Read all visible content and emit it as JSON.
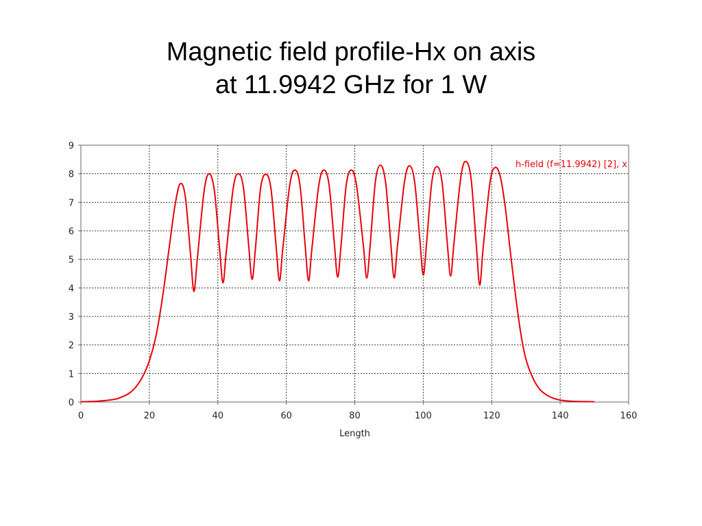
{
  "slide": {
    "title_line1": "Magnetic field profile-Hx on axis",
    "title_line2": "at 11.9942 GHz for 1 W"
  },
  "chart_data": {
    "type": "line",
    "title": "",
    "xlabel": "Length",
    "ylabel": "",
    "xlim": [
      0,
      160
    ],
    "ylim": [
      0,
      9
    ],
    "xticks": [
      0,
      20,
      40,
      60,
      80,
      100,
      120,
      140,
      160
    ],
    "yticks": [
      0,
      1,
      2,
      3,
      4,
      5,
      6,
      7,
      8,
      9
    ],
    "grid": true,
    "grid_style": "dotted",
    "legend_position": "top-right",
    "series": [
      {
        "name": "h-field (f=11.9942) [2], x",
        "color": "#e8000b",
        "peaks": [
          [
            29,
            7.65
          ],
          [
            37.5,
            8.0
          ],
          [
            46,
            8.0
          ],
          [
            54,
            7.98
          ],
          [
            62.5,
            8.13
          ],
          [
            71,
            8.13
          ],
          [
            79,
            8.13
          ],
          [
            87.5,
            8.3
          ],
          [
            96,
            8.28
          ],
          [
            104,
            8.25
          ],
          [
            112.5,
            8.43
          ],
          [
            121,
            8.22
          ]
        ],
        "troughs": [
          [
            33,
            3.88
          ],
          [
            41.5,
            4.18
          ],
          [
            50,
            4.3
          ],
          [
            58,
            4.25
          ],
          [
            66.5,
            4.25
          ],
          [
            75,
            4.38
          ],
          [
            83.5,
            4.35
          ],
          [
            91.5,
            4.35
          ],
          [
            100,
            4.45
          ],
          [
            108,
            4.42
          ],
          [
            116.5,
            4.1
          ]
        ],
        "points": [
          [
            0,
            0.01
          ],
          [
            5,
            0.03
          ],
          [
            10,
            0.1
          ],
          [
            12,
            0.18
          ],
          [
            14,
            0.3
          ],
          [
            16,
            0.52
          ],
          [
            18,
            0.88
          ],
          [
            20,
            1.45
          ],
          [
            22,
            2.35
          ],
          [
            24,
            3.8
          ],
          [
            26,
            5.6
          ],
          [
            27.5,
            6.9
          ],
          [
            29,
            7.65
          ],
          [
            30.5,
            7.2
          ],
          [
            32,
            5.2
          ],
          [
            33,
            3.88
          ],
          [
            34,
            5.0
          ],
          [
            36,
            7.4
          ],
          [
            37.5,
            8.0
          ],
          [
            39,
            7.4
          ],
          [
            40.5,
            5.4
          ],
          [
            41.5,
            4.18
          ],
          [
            42.5,
            5.3
          ],
          [
            44.5,
            7.5
          ],
          [
            46,
            8.0
          ],
          [
            47.5,
            7.5
          ],
          [
            49,
            5.5
          ],
          [
            50,
            4.3
          ],
          [
            51,
            5.4
          ],
          [
            52.5,
            7.5
          ],
          [
            54,
            7.98
          ],
          [
            55.5,
            7.5
          ],
          [
            57,
            5.5
          ],
          [
            58,
            4.25
          ],
          [
            59,
            5.4
          ],
          [
            61,
            7.6
          ],
          [
            62.5,
            8.13
          ],
          [
            64,
            7.6
          ],
          [
            65.5,
            5.5
          ],
          [
            66.5,
            4.25
          ],
          [
            67.5,
            5.4
          ],
          [
            69.5,
            7.6
          ],
          [
            71,
            8.13
          ],
          [
            72.5,
            7.6
          ],
          [
            74,
            5.6
          ],
          [
            75,
            4.38
          ],
          [
            76,
            5.5
          ],
          [
            77.5,
            7.6
          ],
          [
            79,
            8.13
          ],
          [
            80.5,
            7.6
          ],
          [
            82.5,
            5.5
          ],
          [
            83.5,
            4.35
          ],
          [
            84.5,
            5.5
          ],
          [
            86,
            7.7
          ],
          [
            87.5,
            8.3
          ],
          [
            89,
            7.7
          ],
          [
            90.5,
            5.6
          ],
          [
            91.5,
            4.35
          ],
          [
            92.5,
            5.5
          ],
          [
            94.5,
            7.7
          ],
          [
            96,
            8.28
          ],
          [
            97.5,
            7.7
          ],
          [
            99,
            5.7
          ],
          [
            100,
            4.45
          ],
          [
            101,
            5.6
          ],
          [
            102.5,
            7.7
          ],
          [
            104,
            8.25
          ],
          [
            105.5,
            7.7
          ],
          [
            107,
            5.6
          ],
          [
            108,
            4.42
          ],
          [
            109,
            5.6
          ],
          [
            111,
            7.9
          ],
          [
            112.5,
            8.43
          ],
          [
            114,
            7.8
          ],
          [
            115.5,
            5.5
          ],
          [
            116.5,
            4.1
          ],
          [
            117.5,
            5.4
          ],
          [
            119.5,
            7.7
          ],
          [
            121,
            8.22
          ],
          [
            122.5,
            7.9
          ],
          [
            124,
            6.8
          ],
          [
            125.5,
            5.2
          ],
          [
            127,
            3.7
          ],
          [
            128.5,
            2.4
          ],
          [
            130,
            1.5
          ],
          [
            132,
            0.85
          ],
          [
            134,
            0.45
          ],
          [
            136,
            0.25
          ],
          [
            138,
            0.13
          ],
          [
            140,
            0.07
          ],
          [
            142,
            0.04
          ],
          [
            145,
            0.02
          ],
          [
            150,
            0.01
          ]
        ]
      }
    ]
  }
}
